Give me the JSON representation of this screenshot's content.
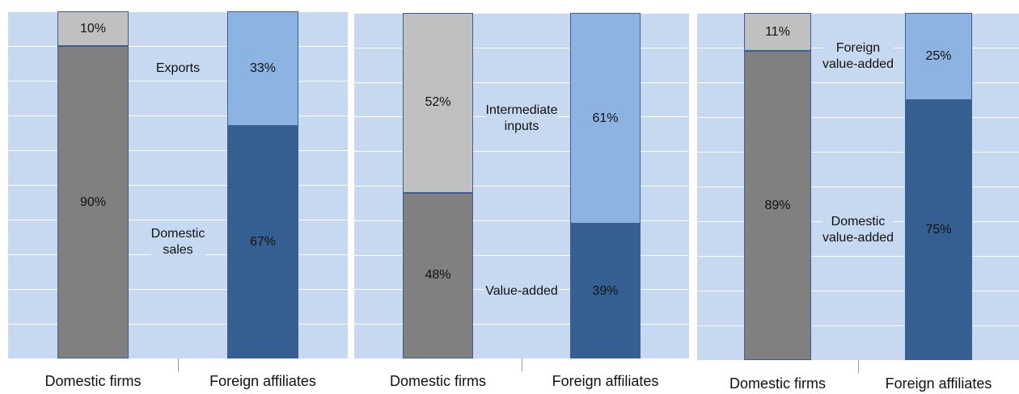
{
  "chart_data": [
    {
      "type": "stacked_bar",
      "categories": [
        "Domestic firms",
        "Foreign affiliates"
      ],
      "ylim": [
        0,
        100
      ],
      "yticks": [
        0,
        10,
        20,
        30,
        40,
        50,
        60,
        70,
        80,
        90,
        100
      ],
      "grid": true,
      "series": [
        {
          "name": "Domestic\nsales",
          "colors": [
            "#808080",
            "#365f91"
          ],
          "values": [
            90,
            67
          ],
          "value_labels": [
            "90%",
            "67%"
          ]
        },
        {
          "name": "Exports",
          "colors": [
            "#c0c0c0",
            "#8db3e2"
          ],
          "values": [
            10,
            33
          ],
          "value_labels": [
            "10%",
            "33%"
          ]
        }
      ]
    },
    {
      "type": "stacked_bar",
      "categories": [
        "Domestic firms",
        "Foreign affiliates"
      ],
      "ylim": [
        0,
        100
      ],
      "yticks": [
        0,
        10,
        20,
        30,
        40,
        50,
        60,
        70,
        80,
        90,
        100
      ],
      "grid": true,
      "series": [
        {
          "name": "Value-added",
          "colors": [
            "#808080",
            "#365f91"
          ],
          "values": [
            48,
            39
          ],
          "value_labels": [
            "48%",
            "39%"
          ]
        },
        {
          "name": "Intermediate\ninputs",
          "colors": [
            "#c0c0c0",
            "#8db3e2"
          ],
          "values": [
            52,
            61
          ],
          "value_labels": [
            "52%",
            "61%"
          ]
        }
      ]
    },
    {
      "type": "stacked_bar",
      "categories": [
        "Domestic firms",
        "Foreign affiliates"
      ],
      "ylim": [
        0,
        100
      ],
      "yticks": [
        0,
        10,
        20,
        30,
        40,
        50,
        60,
        70,
        80,
        90,
        100
      ],
      "grid": true,
      "series": [
        {
          "name": "Domestic\nvalue-added",
          "colors": [
            "#808080",
            "#365f91"
          ],
          "values": [
            89,
            75
          ],
          "value_labels": [
            "89%",
            "75%"
          ]
        },
        {
          "name": "Foreign\nvalue-added",
          "colors": [
            "#c0c0c0",
            "#8db3e2"
          ],
          "values": [
            11,
            25
          ],
          "value_labels": [
            "11%",
            "25%"
          ]
        }
      ]
    }
  ]
}
